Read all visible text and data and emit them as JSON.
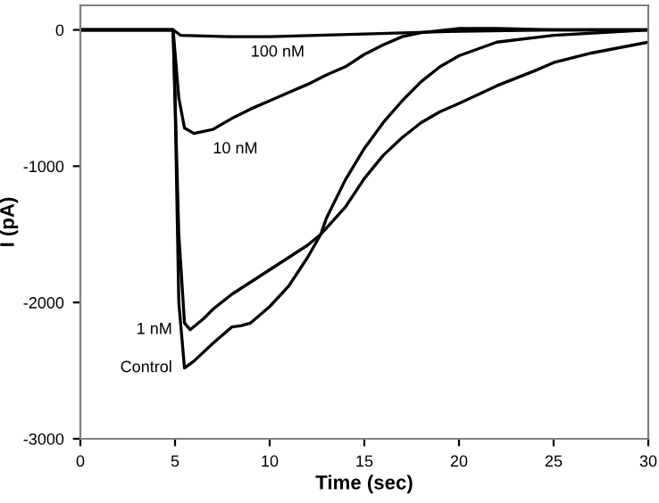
{
  "chart_data": {
    "type": "line",
    "xlabel": "Time (sec)",
    "ylabel": "I (pA)",
    "xlim": [
      0,
      30
    ],
    "xticks": [
      0,
      5,
      10,
      15,
      20,
      25,
      30
    ],
    "ylim": [
      -3000,
      180
    ],
    "yticks": [
      -3000,
      -2000,
      -1000,
      0
    ],
    "grid": false,
    "legend": false,
    "marker": "none",
    "line_style": "solid",
    "series": [
      {
        "name": "100 nM",
        "color": "#000000",
        "x": [
          0,
          4.9,
          5.3,
          8,
          10,
          15,
          20,
          25,
          30
        ],
        "values": [
          0,
          0,
          -40,
          -50,
          -50,
          -30,
          -10,
          0,
          0
        ]
      },
      {
        "name": "10 nM",
        "color": "#000000",
        "x": [
          0,
          4.9,
          5.2,
          5.5,
          6,
          7,
          8,
          9,
          10,
          11,
          12,
          13,
          14,
          15,
          16,
          17,
          18,
          20,
          22,
          25,
          30
        ],
        "values": [
          0,
          0,
          -500,
          -720,
          -760,
          -730,
          -650,
          -580,
          -520,
          -460,
          -400,
          -330,
          -270,
          -180,
          -110,
          -50,
          -20,
          10,
          10,
          0,
          0
        ]
      },
      {
        "name": "1 nM",
        "color": "#000000",
        "x": [
          0,
          4.9,
          5.2,
          5.5,
          5.8,
          6.5,
          7,
          8,
          9,
          10,
          11,
          12,
          12.7,
          14,
          15,
          16,
          17,
          18,
          19,
          20,
          22,
          24,
          25,
          27,
          30
        ],
        "values": [
          0,
          0,
          -1500,
          -2150,
          -2200,
          -2120,
          -2050,
          -1940,
          -1850,
          -1760,
          -1670,
          -1580,
          -1500,
          -1300,
          -1090,
          -920,
          -790,
          -680,
          -600,
          -540,
          -410,
          -300,
          -240,
          -170,
          -90
        ]
      },
      {
        "name": "Control",
        "color": "#000000",
        "x": [
          0,
          4.9,
          5.0,
          5.2,
          5.5,
          6,
          7,
          8,
          8.5,
          9,
          10,
          11,
          12,
          12.7,
          13,
          14,
          15,
          16,
          17,
          18,
          19,
          20,
          22,
          25,
          30
        ],
        "values": [
          0,
          0,
          -500,
          -2000,
          -2480,
          -2430,
          -2300,
          -2180,
          -2170,
          -2150,
          -2030,
          -1880,
          -1670,
          -1500,
          -1380,
          -1100,
          -870,
          -680,
          -520,
          -380,
          -270,
          -190,
          -90,
          -40,
          0
        ]
      }
    ]
  }
}
